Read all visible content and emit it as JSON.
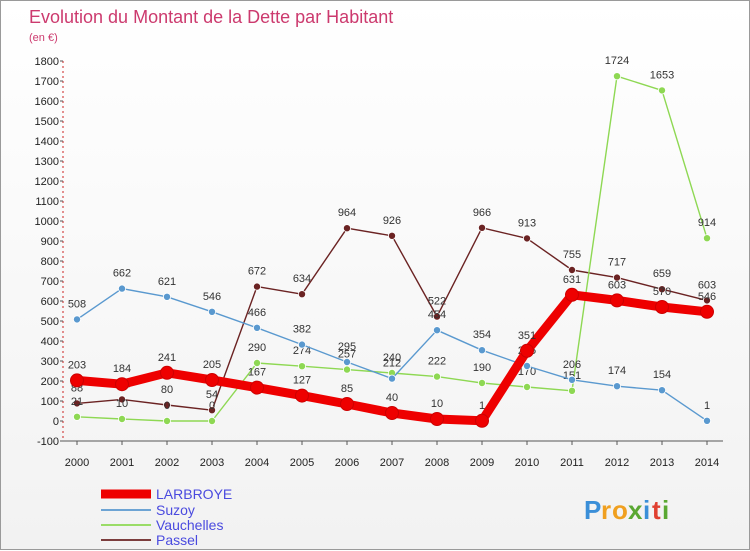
{
  "header": {
    "title": "Evolution du Montant de la Dette par Habitant",
    "unit": "(en €)"
  },
  "brand": {
    "letters": [
      "P",
      "r",
      "o",
      "x",
      "i",
      "t",
      "i"
    ],
    "colors": [
      "#3b8fd8",
      "#f0a020",
      "#f0a020",
      "#5aa832",
      "#3b8fd8",
      "#e04030",
      "#5aa832"
    ]
  },
  "colors": {
    "LARBROYE": "#ee0000",
    "Suzoy": "#5a99cf",
    "Vauchelles": "#8ed853",
    "Passel": "#6b2323",
    "title": "#cc3a6e",
    "legend_text": "#4a4adf"
  },
  "chart_data": {
    "type": "line",
    "title": "Evolution du Montant de la Dette par Habitant",
    "ylabel": "(en €)",
    "x": [
      "2000",
      "2001",
      "2002",
      "2003",
      "2004",
      "2005",
      "2006",
      "2007",
      "2008",
      "2009",
      "2010",
      "2011",
      "2012",
      "2013",
      "2014"
    ],
    "ylim": [
      -100,
      1800
    ],
    "yticks": [
      -100,
      0,
      100,
      200,
      300,
      400,
      500,
      600,
      700,
      800,
      900,
      1000,
      1100,
      1200,
      1300,
      1400,
      1500,
      1600,
      1700,
      1800
    ],
    "grid": false,
    "legend": "bottom-left",
    "series": [
      {
        "name": "LARBROYE",
        "values": [
          203,
          184,
          241,
          205,
          167,
          127,
          85,
          40,
          10,
          1,
          351,
          631,
          603,
          570,
          546
        ]
      },
      {
        "name": "Suzoy",
        "values": [
          508,
          662,
          621,
          546,
          466,
          382,
          295,
          212,
          454,
          354,
          275,
          206,
          174,
          154,
          1
        ]
      },
      {
        "name": "Vauchelles",
        "values": [
          21,
          10,
          0,
          0,
          290,
          274,
          257,
          240,
          222,
          190,
          170,
          151,
          1724,
          1653,
          914
        ]
      },
      {
        "name": "Passel",
        "values": [
          88,
          108,
          80,
          54,
          672,
          634,
          964,
          926,
          522,
          966,
          913,
          755,
          717,
          659,
          603
        ]
      }
    ]
  }
}
